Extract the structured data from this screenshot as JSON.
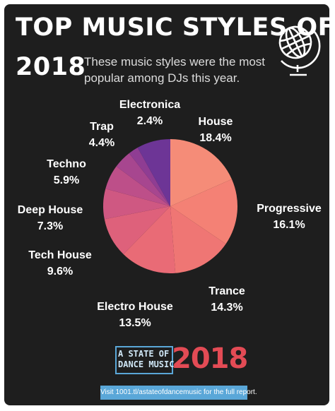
{
  "header": {
    "title_line1": "TOP MUSIC STYLES OF",
    "title_line2": "2018",
    "subtitle_line1": "These music styles were the most",
    "subtitle_line2": "popular among DJs this year.",
    "globe_icon": "globe-icon"
  },
  "chart_data": {
    "type": "pie",
    "slices": [
      {
        "label": "House",
        "value": 18.4,
        "display": "18.4%",
        "color": "#f58c78"
      },
      {
        "label": "Progressive",
        "value": 16.1,
        "display": "16.1%",
        "color": "#f48175"
      },
      {
        "label": "Trance",
        "value": 14.3,
        "display": "14.3%",
        "color": "#ef7674"
      },
      {
        "label": "Electro House",
        "value": 13.5,
        "display": "13.5%",
        "color": "#e96b76"
      },
      {
        "label": "Tech House",
        "value": 9.6,
        "display": "9.6%",
        "color": "#de617b"
      },
      {
        "label": "Deep House",
        "value": 7.3,
        "display": "7.3%",
        "color": "#cf5882"
      },
      {
        "label": "Techno",
        "value": 5.9,
        "display": "5.9%",
        "color": "#bd4f89"
      },
      {
        "label": "Trap",
        "value": 4.4,
        "display": "4.4%",
        "color": "#a7468f"
      },
      {
        "label": "Electronica",
        "value": 2.4,
        "display": "2.4%",
        "color": "#8f3d93"
      }
    ],
    "residual_color": "#6d3596"
  },
  "footer": {
    "logo_line1": "A STATE OF",
    "logo_line2": "DANCE MUSIC",
    "logo_year": "2018",
    "logo_box_color": "#5aa7d8",
    "year_color": "#e34b55",
    "banner_text": "Visit 1001.tl/astateofdancemusic for the full report."
  }
}
